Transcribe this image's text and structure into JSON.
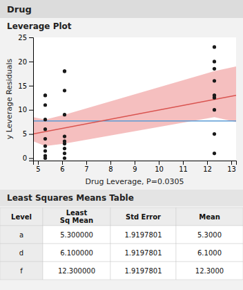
{
  "chart_data": [
    {
      "type": "scatter",
      "title": "Drug",
      "subtitle": "Leverage Plot",
      "x_label": "Drug Leverage, P=0.0305",
      "y_label": "y Leverage Residuals",
      "xlim": [
        4.8,
        13.2
      ],
      "ylim": [
        -0.5,
        25
      ],
      "xticks": [
        5,
        6,
        7,
        8,
        9,
        10,
        11,
        12,
        13
      ],
      "yticks": [
        0,
        5,
        10,
        15,
        20,
        25
      ],
      "series": [
        {
          "type": "area",
          "color": "#f4b8b8",
          "x": [
            4.8,
            5.3,
            6.1,
            12.3,
            13.2
          ],
          "upper": [
            8.5,
            8.0,
            9.0,
            18.0,
            19.0
          ],
          "lower": [
            3.5,
            2.5,
            3.0,
            8.5,
            7.5
          ]
        },
        {
          "type": "hline",
          "color": "#5b9bd5",
          "values": [
            7.7
          ]
        },
        {
          "type": "line",
          "color": "#d9534f",
          "x": [
            4.8,
            13.2
          ],
          "values": [
            5.0,
            13.0
          ]
        },
        {
          "type": "scatter",
          "color": "#1a1a1a",
          "x": [
            5.3,
            5.3,
            5.3,
            5.3,
            5.3,
            5.3,
            5.3,
            5.3,
            5.3,
            5.3,
            6.1,
            6.1,
            6.1,
            6.1,
            6.1,
            6.1,
            6.1,
            6.1,
            6.1,
            6.1,
            12.3,
            12.3,
            12.3,
            12.3,
            12.3,
            12.3,
            12.3,
            12.3,
            12.3,
            12.3
          ],
          "values": [
            0.0,
            0.5,
            1.5,
            2.5,
            4.0,
            6.0,
            8.0,
            11.0,
            13.0,
            13.0,
            0.0,
            1.0,
            2.0,
            3.0,
            3.5,
            4.5,
            9.0,
            14.0,
            18.0,
            18.0,
            1.0,
            5.0,
            10.0,
            12.5,
            13.0,
            13.0,
            16.0,
            18.5,
            20.0,
            23.0
          ]
        }
      ]
    },
    {
      "type": "table",
      "title": "Least Squares Means Table",
      "columns": [
        "Level",
        "Least\nSq Mean",
        "Std Error",
        "Mean"
      ],
      "rows": [
        [
          "a",
          "5.300000",
          "1.9197801",
          "5.3000"
        ],
        [
          "d",
          "6.100000",
          "1.9197801",
          "6.1000"
        ],
        [
          "f",
          "12.300000",
          "1.9197801",
          "12.3000"
        ]
      ]
    }
  ]
}
